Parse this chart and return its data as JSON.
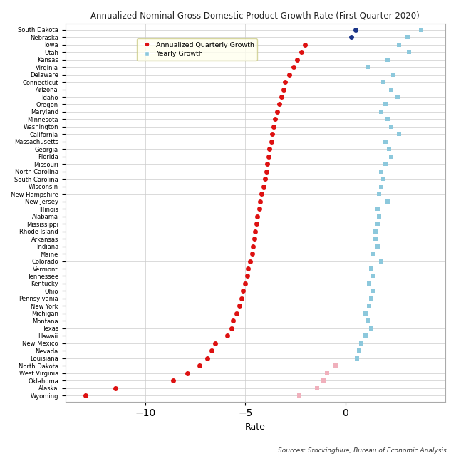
{
  "title": "Annualized Nominal Gross Domestic Product Growth Rate (First Quarter 2020)",
  "xlabel": "Rate",
  "source": "Sources: Stockingblue, Bureau of Economic Analysis",
  "states": [
    "South Dakota",
    "Nebraska",
    "Iowa",
    "Utah",
    "Kansas",
    "Virginia",
    "Delaware",
    "Connecticut",
    "Arizona",
    "Idaho",
    "Oregon",
    "Maryland",
    "Minnesota",
    "Washington",
    "California",
    "Massachusetts",
    "Georgia",
    "Florida",
    "Missouri",
    "North Carolina",
    "South Carolina",
    "Wisconsin",
    "New Hampshire",
    "New Jersey",
    "Illinois",
    "Alabama",
    "Mississippi",
    "Rhode Island",
    "Arkansas",
    "Indiana",
    "Maine",
    "Colorado",
    "Vermont",
    "Tennessee",
    "Kentucky",
    "Ohio",
    "Pennsylvania",
    "New York",
    "Michigan",
    "Montana",
    "Texas",
    "Hawaii",
    "New Mexico",
    "Nevada",
    "Louisiana",
    "North Dakota",
    "West Virginia",
    "Oklahoma",
    "Alaska",
    "Wyoming"
  ],
  "quarterly_growth": [
    0.5,
    0.3,
    -2.0,
    -2.2,
    -2.4,
    -2.6,
    -2.8,
    -3.0,
    -3.1,
    -3.2,
    -3.3,
    -3.4,
    -3.5,
    -3.6,
    -3.65,
    -3.7,
    -3.8,
    -3.85,
    -3.9,
    -3.95,
    -4.0,
    -4.1,
    -4.2,
    -4.25,
    -4.3,
    -4.4,
    -4.45,
    -4.5,
    -4.55,
    -4.6,
    -4.65,
    -4.75,
    -4.85,
    -4.9,
    -5.0,
    -5.1,
    -5.2,
    -5.3,
    -5.45,
    -5.6,
    -5.7,
    -5.9,
    -6.5,
    -6.7,
    -6.9,
    -7.3,
    -7.9,
    -8.6,
    -11.5,
    -13.0
  ],
  "yearly_growth": [
    3.8,
    3.1,
    2.7,
    3.2,
    2.1,
    1.1,
    2.4,
    1.9,
    2.3,
    2.6,
    2.0,
    1.8,
    2.1,
    2.3,
    2.7,
    2.0,
    2.2,
    2.3,
    2.0,
    1.8,
    1.9,
    1.8,
    1.7,
    2.1,
    1.6,
    1.7,
    1.6,
    1.5,
    1.5,
    1.6,
    1.4,
    1.8,
    1.3,
    1.4,
    1.2,
    1.4,
    1.3,
    1.2,
    1.0,
    1.1,
    1.3,
    1.0,
    0.8,
    0.7,
    0.6,
    -0.5,
    -0.9,
    -1.1,
    -1.4,
    -2.3
  ],
  "quarterly_blue_states": [
    "South Dakota",
    "Nebraska"
  ],
  "yearly_pink_states": [
    "North Dakota",
    "West Virginia",
    "Oklahoma",
    "Alaska",
    "Wyoming"
  ],
  "dot_color_red": "#dd1111",
  "dot_color_blue": "#1a3488",
  "square_color_cyan": "#8cc8dc",
  "square_color_pink": "#f0b0bc",
  "background_color": "#ffffff",
  "grid_color": "#cccccc",
  "legend_bg": "#ffffee",
  "legend_edge": "#cccc88",
  "xlim_left": -14,
  "xlim_right": 5,
  "xticks": [
    -10,
    -5,
    0
  ],
  "title_fontsize": 8.5,
  "label_fontsize": 9,
  "ytick_fontsize": 6.0,
  "source_fontsize": 6.5
}
